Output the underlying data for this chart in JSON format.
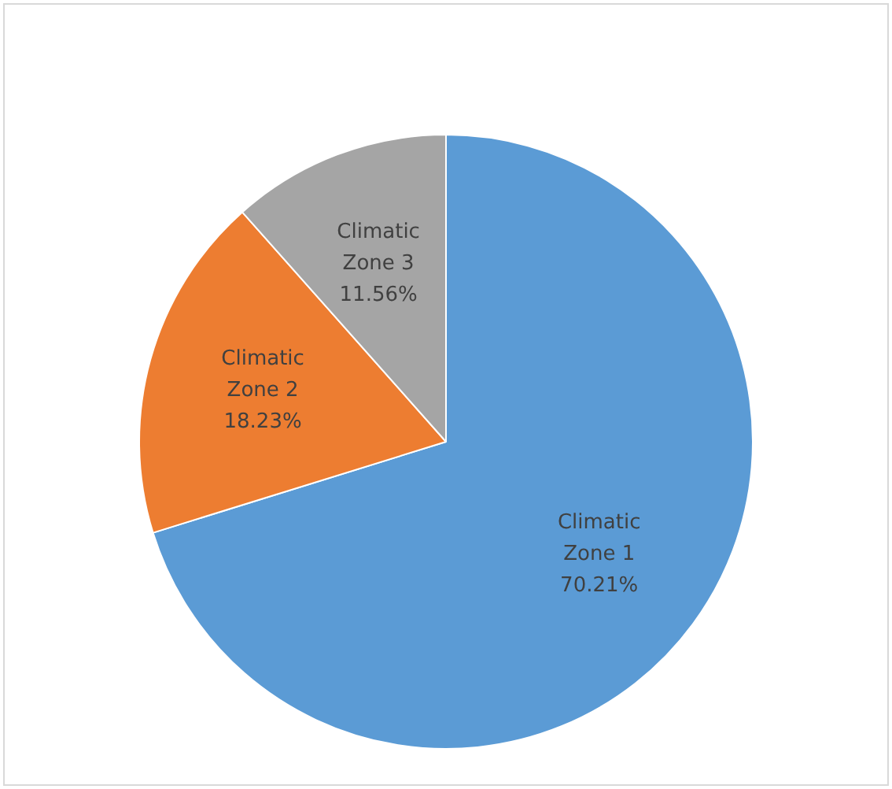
{
  "chart_data": {
    "type": "pie",
    "categories": [
      "Climatic Zone 1",
      "Climatic Zone 2",
      "Climatic Zone 3"
    ],
    "values": [
      70.21,
      18.23,
      11.56
    ],
    "colors": [
      "#5b9bd5",
      "#ed7d31",
      "#a5a5a5"
    ],
    "value_labels": [
      "70.21%",
      "18.23%",
      "11.56%"
    ],
    "legend": false
  }
}
